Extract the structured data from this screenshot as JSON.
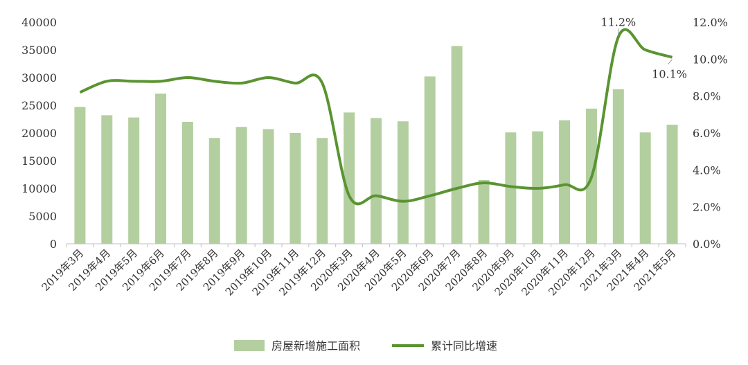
{
  "chart_data": {
    "type": "bar",
    "categories": [
      "2019年3月",
      "2019年4月",
      "2019年5月",
      "2019年6月",
      "2019年7月",
      "2019年8月",
      "2019年9月",
      "2019年10月",
      "2019年11月",
      "2019年12月",
      "2020年3月",
      "2020年4月",
      "2020年5月",
      "2020年6月",
      "2020年7月",
      "2020年8月",
      "2020年9月",
      "2020年10月",
      "2020年11月",
      "2020年12月",
      "2021年3月",
      "2021年4月",
      "2021年5月"
    ],
    "series": [
      {
        "name": "房屋新增施工面积",
        "type": "bar",
        "axis": "left",
        "color": "#b3cfa0",
        "values": [
          24700,
          23200,
          22800,
          27100,
          22000,
          19100,
          21100,
          20700,
          20000,
          19100,
          23700,
          22700,
          22100,
          30200,
          35700,
          11500,
          20100,
          20300,
          22300,
          24400,
          27900,
          20100,
          21500
        ]
      },
      {
        "name": "累计同比增速",
        "type": "line",
        "axis": "right",
        "color": "#5a9432",
        "values": [
          8.2,
          8.8,
          8.8,
          8.8,
          9.0,
          8.8,
          8.7,
          9.0,
          8.7,
          8.7,
          2.6,
          2.6,
          2.3,
          2.6,
          3.0,
          3.3,
          3.1,
          3.0,
          3.2,
          3.6,
          11.2,
          10.5,
          10.1
        ]
      }
    ],
    "y_left": {
      "min": 0,
      "max": 40000,
      "ticks": [
        "0",
        "5000",
        "10000",
        "15000",
        "20000",
        "25000",
        "30000",
        "35000",
        "40000"
      ]
    },
    "y_right": {
      "min": 0,
      "max": 12,
      "ticks": [
        "0.0%",
        "2.0%",
        "4.0%",
        "6.0%",
        "8.0%",
        "10.0%",
        "12.0%"
      ]
    },
    "annotations": [
      {
        "index": 20,
        "label": "11.2%"
      },
      {
        "index": 22,
        "label": "10.1%"
      }
    ],
    "legend": {
      "position": "bottom",
      "items": [
        "房屋新增施工面积",
        "累计同比增速"
      ]
    },
    "grid": false
  }
}
